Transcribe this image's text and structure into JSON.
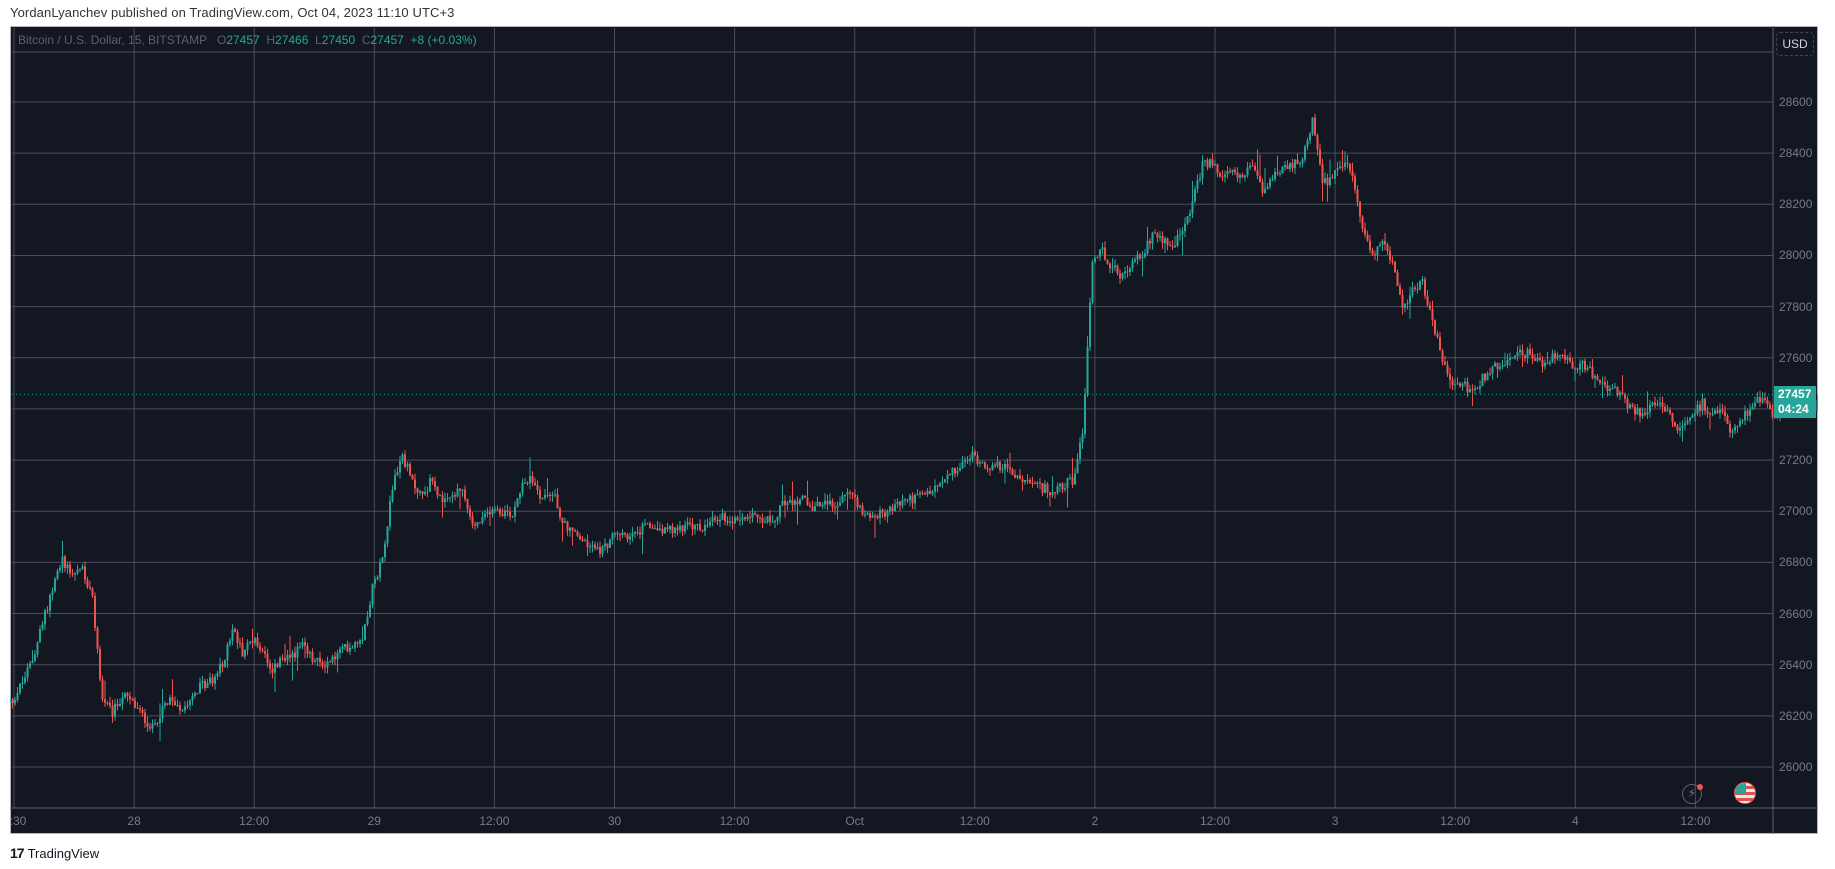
{
  "header": {
    "published_line": "YordanLyanchev published on TradingView.com, Oct 04, 2023 11:10 UTC+3"
  },
  "legend": {
    "symbol": "Bitcoin / U.S. Dollar, 15, BITSTAMP",
    "open_label": "O",
    "open": "27457",
    "high_label": "H",
    "high": "27466",
    "low_label": "L",
    "low": "27450",
    "close_label": "C",
    "close": "27457",
    "change": "+8 (+0.03%)"
  },
  "price_scale": {
    "currency_button": "USD",
    "labels": [
      "28600",
      "28400",
      "28200",
      "28000",
      "27800",
      "27600",
      "27200",
      "27000",
      "26800",
      "26600",
      "26400",
      "26200",
      "26000"
    ],
    "last_price": "27457",
    "countdown": "04:24"
  },
  "time_scale": {
    "labels": [
      ":30",
      "28",
      "12:00",
      "29",
      "12:00",
      "30",
      "12:00",
      "Oct",
      "12:00",
      "2",
      "12:00",
      "3",
      "12:00",
      "4",
      "12:00"
    ]
  },
  "icons": {
    "lightning": "lightning-icon",
    "flag": "us-flag-event-icon",
    "brand": "tradingview-logo-icon"
  },
  "footer": {
    "logo_glyph": "17",
    "brand": "TradingView"
  },
  "colors": {
    "background": "#131722",
    "grid": "#5d606b",
    "up": "#26a69a",
    "down": "#ef5350",
    "axis_text": "#787b86"
  },
  "chart_data": {
    "type": "candlestick",
    "title": "Bitcoin / U.S. Dollar, 15, BITSTAMP",
    "interval": "15m",
    "xlabel": "",
    "ylabel": "USD",
    "ylim": [
      25850,
      28780
    ],
    "y_ticks": [
      26000,
      26200,
      26400,
      26600,
      26800,
      27000,
      27200,
      27400,
      27600,
      27800,
      28000,
      28200,
      28400,
      28600
    ],
    "x_ticks": [
      ":30",
      "28",
      "12:00",
      "29",
      "12:00",
      "30",
      "12:00",
      "Oct",
      "12:00",
      "2",
      "12:00",
      "3",
      "12:00",
      "4",
      "12:00"
    ],
    "grid": true,
    "last_price": 27457,
    "ohlc_last": {
      "open": 27457,
      "high": 27466,
      "low": 27450,
      "close": 27457,
      "change": 8,
      "change_pct": 0.03
    },
    "price_path_keyframes": {
      "note": "Approximate close-price path read from chart; hours since Sep 27 00:00 (UTC+3) -> price",
      "points": [
        [
          -1,
          26240
        ],
        [
          0,
          26260
        ],
        [
          1,
          26330
        ],
        [
          2,
          26420
        ],
        [
          3,
          26560
        ],
        [
          4,
          26700
        ],
        [
          5,
          26810
        ],
        [
          6,
          26760
        ],
        [
          7,
          26780
        ],
        [
          8,
          26650
        ],
        [
          9,
          26260
        ],
        [
          10,
          26210
        ],
        [
          11,
          26280
        ],
        [
          12,
          26250
        ],
        [
          13,
          26200
        ],
        [
          14,
          26150
        ],
        [
          15,
          26230
        ],
        [
          16,
          26260
        ],
        [
          17,
          26230
        ],
        [
          18,
          26290
        ],
        [
          19,
          26320
        ],
        [
          20,
          26340
        ],
        [
          21,
          26400
        ],
        [
          22,
          26540
        ],
        [
          23,
          26450
        ],
        [
          24,
          26500
        ],
        [
          25,
          26460
        ],
        [
          26,
          26380
        ],
        [
          27,
          26420
        ],
        [
          28,
          26440
        ],
        [
          29,
          26470
        ],
        [
          30,
          26420
        ],
        [
          31,
          26400
        ],
        [
          32,
          26420
        ],
        [
          33,
          26460
        ],
        [
          34,
          26480
        ],
        [
          35,
          26510
        ],
        [
          36,
          26700
        ],
        [
          37,
          26820
        ],
        [
          38,
          27100
        ],
        [
          39,
          27220
        ],
        [
          40,
          27110
        ],
        [
          41,
          27060
        ],
        [
          42,
          27130
        ],
        [
          43,
          27020
        ],
        [
          44,
          27060
        ],
        [
          45,
          27080
        ],
        [
          46,
          26940
        ],
        [
          47,
          26960
        ],
        [
          48,
          27020
        ],
        [
          49,
          27000
        ],
        [
          50,
          26990
        ],
        [
          51,
          27120
        ],
        [
          52,
          27120
        ],
        [
          53,
          27050
        ],
        [
          54,
          27080
        ],
        [
          55,
          26960
        ],
        [
          56,
          26920
        ],
        [
          57,
          26880
        ],
        [
          58,
          26860
        ],
        [
          59,
          26850
        ],
        [
          60,
          26900
        ],
        [
          61,
          26910
        ],
        [
          62,
          26900
        ],
        [
          63,
          26930
        ],
        [
          64,
          26940
        ],
        [
          65,
          26930
        ],
        [
          66,
          26920
        ],
        [
          67,
          26940
        ],
        [
          68,
          26940
        ],
        [
          69,
          26930
        ],
        [
          70,
          26960
        ],
        [
          71,
          26980
        ],
        [
          72,
          26960
        ],
        [
          73,
          26980
        ],
        [
          74,
          27000
        ],
        [
          75,
          26970
        ],
        [
          76,
          26960
        ],
        [
          77,
          27030
        ],
        [
          78,
          27040
        ],
        [
          79,
          27050
        ],
        [
          80,
          27010
        ],
        [
          81,
          27030
        ],
        [
          82,
          27020
        ],
        [
          83,
          27050
        ],
        [
          84,
          27070
        ],
        [
          85,
          27000
        ],
        [
          86,
          26980
        ],
        [
          87,
          26990
        ],
        [
          88,
          27010
        ],
        [
          89,
          27040
        ],
        [
          90,
          27050
        ],
        [
          91,
          27060
        ],
        [
          92,
          27080
        ],
        [
          93,
          27110
        ],
        [
          94,
          27150
        ],
        [
          95,
          27180
        ],
        [
          96,
          27220
        ],
        [
          97,
          27190
        ],
        [
          98,
          27170
        ],
        [
          99,
          27180
        ],
        [
          100,
          27140
        ],
        [
          101,
          27120
        ],
        [
          102,
          27100
        ],
        [
          103,
          27090
        ],
        [
          104,
          27080
        ],
        [
          105,
          27100
        ],
        [
          106,
          27120
        ],
        [
          107,
          27300
        ],
        [
          108,
          27980
        ],
        [
          109,
          28020
        ],
        [
          110,
          27950
        ],
        [
          111,
          27920
        ],
        [
          112,
          27960
        ],
        [
          113,
          28010
        ],
        [
          114,
          28080
        ],
        [
          115,
          28060
        ],
        [
          116,
          28030
        ],
        [
          117,
          28100
        ],
        [
          118,
          28200
        ],
        [
          119,
          28360
        ],
        [
          120,
          28360
        ],
        [
          121,
          28300
        ],
        [
          122,
          28330
        ],
        [
          123,
          28310
        ],
        [
          124,
          28340
        ],
        [
          125,
          28260
        ],
        [
          126,
          28300
        ],
        [
          127,
          28330
        ],
        [
          128,
          28350
        ],
        [
          129,
          28380
        ],
        [
          130,
          28520
        ],
        [
          131,
          28280
        ],
        [
          132,
          28300
        ],
        [
          133,
          28360
        ],
        [
          134,
          28320
        ],
        [
          135,
          28100
        ],
        [
          136,
          28000
        ],
        [
          137,
          28060
        ],
        [
          138,
          27980
        ],
        [
          139,
          27800
        ],
        [
          140,
          27860
        ],
        [
          141,
          27900
        ],
        [
          142,
          27740
        ],
        [
          143,
          27600
        ],
        [
          144,
          27480
        ],
        [
          145,
          27500
        ],
        [
          146,
          27460
        ],
        [
          147,
          27520
        ],
        [
          148,
          27560
        ],
        [
          149,
          27580
        ],
        [
          150,
          27600
        ],
        [
          151,
          27620
        ],
        [
          152,
          27610
        ],
        [
          153,
          27580
        ],
        [
          154,
          27600
        ],
        [
          155,
          27620
        ],
        [
          156,
          27560
        ],
        [
          157,
          27580
        ],
        [
          158,
          27540
        ],
        [
          159,
          27500
        ],
        [
          160,
          27480
        ],
        [
          161,
          27440
        ],
        [
          162,
          27400
        ],
        [
          163,
          27380
        ],
        [
          164,
          27420
        ],
        [
          165,
          27400
        ],
        [
          166,
          27350
        ],
        [
          167,
          27320
        ],
        [
          168,
          27380
        ],
        [
          169,
          27420
        ],
        [
          170,
          27380
        ],
        [
          171,
          27400
        ],
        [
          172,
          27300
        ],
        [
          173,
          27360
        ],
        [
          174,
          27420
        ],
        [
          175,
          27440
        ],
        [
          176,
          27380
        ],
        [
          177,
          27400
        ],
        [
          178,
          27420
        ],
        [
          179,
          27400
        ],
        [
          180,
          27410
        ],
        [
          181,
          27420
        ],
        [
          182,
          27457
        ]
      ]
    },
    "notable": {
      "low": {
        "time": "Sep 27 ~15:00",
        "price": 26110
      },
      "high": {
        "time": "Oct 2 ~17:30",
        "price": 28580
      },
      "breakout": {
        "time": "Oct 2 ~00:00",
        "from": 27100,
        "to": 28050
      }
    },
    "series": [
      {
        "name": "BTCUSD 15m",
        "up_color": "#26a69a",
        "down_color": "#ef5350"
      }
    ]
  }
}
